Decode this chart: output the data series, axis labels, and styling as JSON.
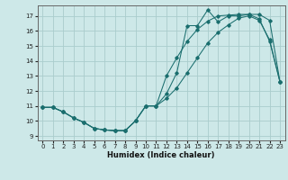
{
  "xlabel": "Humidex (Indice chaleur)",
  "xlim": [
    -0.5,
    23.5
  ],
  "ylim": [
    8.7,
    17.7
  ],
  "yticks": [
    9,
    10,
    11,
    12,
    13,
    14,
    15,
    16,
    17
  ],
  "xticks": [
    0,
    1,
    2,
    3,
    4,
    5,
    6,
    7,
    8,
    9,
    10,
    11,
    12,
    13,
    14,
    15,
    16,
    17,
    18,
    19,
    20,
    21,
    22,
    23
  ],
  "bg_color": "#cde8e8",
  "grid_color": "#aacccc",
  "line_color": "#1a6e6e",
  "curve1_x": [
    0,
    1,
    2,
    3,
    4,
    5,
    6,
    7,
    8,
    9,
    10,
    11,
    12,
    13,
    14,
    15,
    16,
    17,
    18,
    19,
    20,
    21,
    22,
    23
  ],
  "curve1_y": [
    10.9,
    10.9,
    10.6,
    10.2,
    9.9,
    9.5,
    9.4,
    9.35,
    9.35,
    10.0,
    11.0,
    11.0,
    11.8,
    13.2,
    16.35,
    16.35,
    17.4,
    16.6,
    17.0,
    17.0,
    17.1,
    17.1,
    16.7,
    12.6
  ],
  "curve2_x": [
    0,
    1,
    2,
    3,
    4,
    5,
    6,
    7,
    8,
    9,
    10,
    11,
    12,
    13,
    14,
    15,
    16,
    17,
    18,
    19,
    20,
    21,
    22,
    23
  ],
  "curve2_y": [
    10.9,
    10.9,
    10.6,
    10.2,
    9.9,
    9.5,
    9.4,
    9.35,
    9.35,
    10.0,
    11.0,
    11.0,
    13.0,
    14.2,
    15.3,
    16.1,
    16.65,
    17.0,
    17.05,
    17.1,
    17.1,
    16.8,
    15.3,
    12.6
  ],
  "curve3_x": [
    0,
    1,
    2,
    3,
    4,
    5,
    6,
    7,
    8,
    9,
    10,
    11,
    12,
    13,
    14,
    15,
    16,
    17,
    18,
    19,
    20,
    21,
    22,
    23
  ],
  "curve3_y": [
    10.9,
    10.9,
    10.6,
    10.2,
    9.9,
    9.5,
    9.4,
    9.35,
    9.35,
    10.0,
    11.0,
    11.0,
    11.5,
    12.2,
    13.2,
    14.2,
    15.2,
    15.9,
    16.4,
    16.85,
    17.0,
    16.7,
    15.4,
    12.6
  ]
}
